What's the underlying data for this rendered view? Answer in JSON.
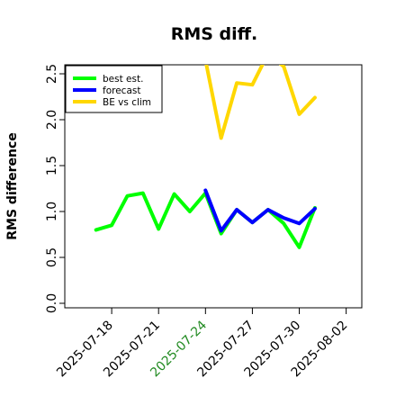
{
  "chart_data": {
    "type": "line",
    "title": "RMS diff.",
    "xlabel": "",
    "ylabel": "RMS difference",
    "ylim": [
      0.0,
      2.5
    ],
    "yticks": [
      "0.0",
      "0.5",
      "1.0",
      "1.5",
      "2.0",
      "2.5"
    ],
    "xticks": [
      {
        "label": "2025-07-18",
        "color": "#000000"
      },
      {
        "label": "2025-07-21",
        "color": "#000000"
      },
      {
        "label": "2025-07-24",
        "color": "#228B22"
      },
      {
        "label": "2025-07-27",
        "color": "#000000"
      },
      {
        "label": "2025-07-30",
        "color": "#000000"
      },
      {
        "label": "2025-08-02",
        "color": "#000000"
      }
    ],
    "x": [
      "2025-07-17",
      "2025-07-18",
      "2025-07-19",
      "2025-07-20",
      "2025-07-21",
      "2025-07-22",
      "2025-07-23",
      "2025-07-24",
      "2025-07-25",
      "2025-07-26",
      "2025-07-27",
      "2025-07-28",
      "2025-07-29",
      "2025-07-30",
      "2025-07-31"
    ],
    "xrange": [
      "2025-07-15",
      "2025-08-03"
    ],
    "series": [
      {
        "name": "best est.",
        "color": "#00ff00",
        "values": [
          0.8,
          0.85,
          1.17,
          1.2,
          0.81,
          1.19,
          1.0,
          1.2,
          0.76,
          1.02,
          0.88,
          1.02,
          0.87,
          0.61,
          1.04
        ],
        "gaps": []
      },
      {
        "name": "forecast",
        "color": "#0000ff",
        "values": [
          null,
          null,
          null,
          null,
          null,
          null,
          null,
          1.23,
          0.79,
          1.02,
          0.88,
          1.02,
          0.93,
          0.87,
          1.03
        ],
        "gaps": []
      },
      {
        "name": "BE vs clim",
        "color": "#ffd700",
        "values": [
          null,
          null,
          null,
          null,
          null,
          null,
          null,
          2.65,
          1.8,
          2.4,
          2.38,
          2.72,
          2.58,
          2.06,
          2.24
        ],
        "gaps": []
      }
    ],
    "legend_position": "top-left",
    "grid": false
  }
}
